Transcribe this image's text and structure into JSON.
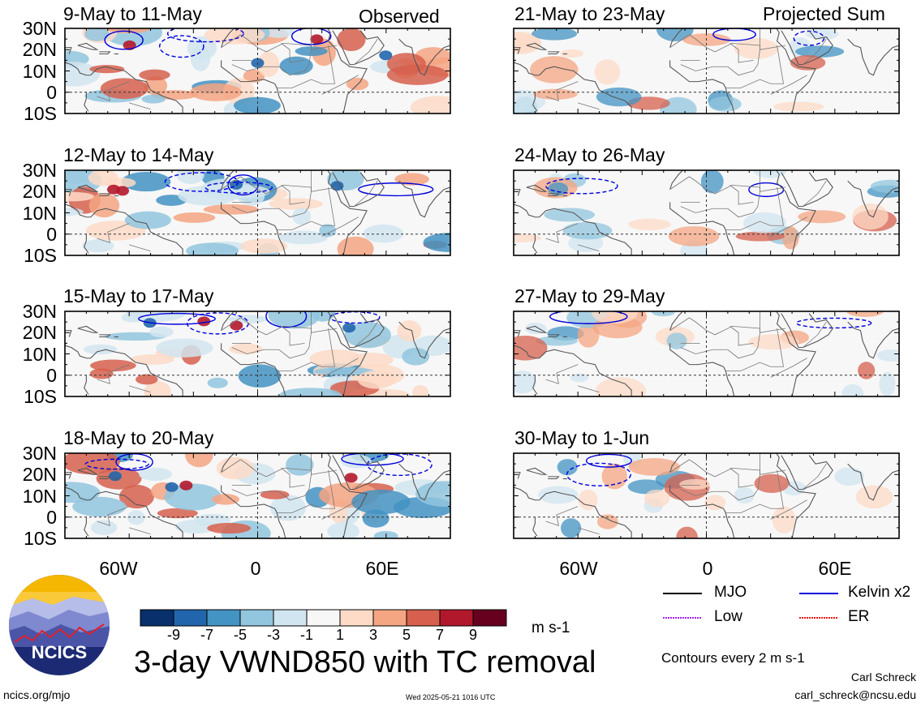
{
  "chart_data": {
    "type": "heatmap",
    "variable": "3-day VWND850 with TC removal",
    "units": "m s-1",
    "contour_note": "Contours every 2 m s-1",
    "lat_ticks": [
      "30N",
      "20N",
      "10N",
      "0",
      "10S"
    ],
    "lon_ticks": [
      "60W",
      "0",
      "60E"
    ],
    "lat_range": [
      -10,
      30
    ],
    "lon_range": [
      -90,
      90
    ],
    "colorbar": {
      "levels": [
        -9,
        -7,
        -5,
        -3,
        -1,
        1,
        3,
        5,
        7,
        9
      ],
      "colors": [
        "#08306b",
        "#2166ac",
        "#4393c3",
        "#92c5de",
        "#d1e5f0",
        "#f7f7f7",
        "#fddbc7",
        "#f4a582",
        "#d6604d",
        "#b2182b",
        "#67001f"
      ]
    },
    "columns": [
      "Observed",
      "Projected Sum"
    ],
    "panels": [
      {
        "column": 0,
        "row": 0,
        "title": "9-May to 11-May",
        "tag": "Observed"
      },
      {
        "column": 0,
        "row": 1,
        "title": "12-May to 14-May",
        "tag": ""
      },
      {
        "column": 0,
        "row": 2,
        "title": "15-May to 17-May",
        "tag": ""
      },
      {
        "column": 0,
        "row": 3,
        "title": "18-May to 20-May",
        "tag": ""
      },
      {
        "column": 1,
        "row": 0,
        "title": "21-May to 23-May",
        "tag": "Projected Sum"
      },
      {
        "column": 1,
        "row": 1,
        "title": "24-May to 26-May",
        "tag": ""
      },
      {
        "column": 1,
        "row": 2,
        "title": "27-May to 29-May",
        "tag": ""
      },
      {
        "column": 1,
        "row": 3,
        "title": "30-May to 1-Jun",
        "tag": ""
      }
    ],
    "legend": [
      {
        "label": "MJO",
        "color": "#000000"
      },
      {
        "label": "Kelvin x2",
        "color": "#0000dd"
      },
      {
        "label": "Low",
        "color": "#a020f0"
      },
      {
        "label": "ER",
        "color": "#ee1111"
      }
    ]
  },
  "footer": {
    "title": "3-day VWND850 with TC removal",
    "units": "m s-1",
    "contours": "Contours every 2 m s-1",
    "author": "Carl Schreck",
    "email": "carl_schreck@ncsu.edu",
    "url": "ncics.org/mjo",
    "timestamp": "Wed 2025-05-21 1016 UTC",
    "logo_text": "NCICS"
  }
}
